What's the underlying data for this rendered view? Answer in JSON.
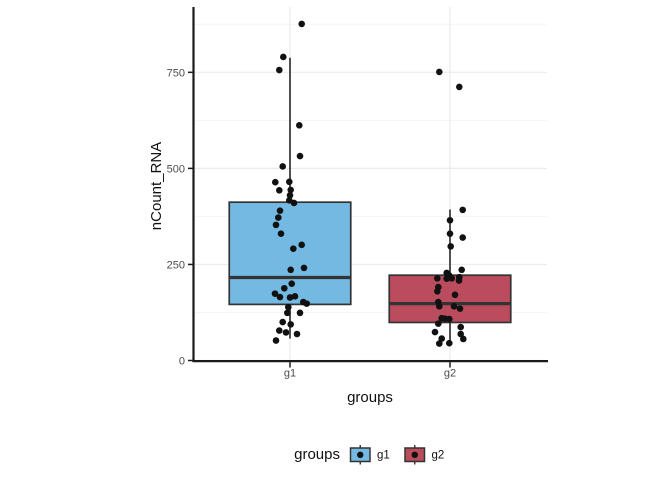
{
  "figure": {
    "background": "#ffffff"
  },
  "chart_data": {
    "type": "boxplot_with_jitter",
    "title": "",
    "xlabel": "groups",
    "ylabel": "nCount_RNA",
    "categories": [
      "g1",
      "g2"
    ],
    "yticks": [
      0,
      250,
      500,
      750
    ],
    "yminor_gridlines": [
      125,
      375,
      625,
      875
    ],
    "ylim": [
      0,
      920
    ],
    "grid": "horizontal major+minor, vertical major at categories",
    "legend": {
      "title": "groups",
      "entries": [
        "g1",
        "g2"
      ],
      "position": "bottom"
    },
    "colors": {
      "point": "#111111",
      "box_outline": "#333333",
      "axis": "#1a1a1a",
      "tick_label": "#4d4d4d",
      "major_grid": "#ebebeb",
      "minor_grid": "#f5f5f5",
      "g1_fill": "#74b9e2",
      "g2_fill": "#ba4c5d"
    },
    "series": [
      {
        "name": "g1",
        "fill": "#74b9e2",
        "box": {
          "q1": 146,
          "median": 216,
          "q3": 412,
          "whisker_low": 57,
          "whisker_high": 788
        },
        "points": [
          [
            876,
            11.7
          ],
          [
            790,
            -6.7
          ],
          [
            756,
            -10.7
          ],
          [
            612,
            9.3
          ],
          [
            532,
            10
          ],
          [
            505,
            -7.3
          ],
          [
            464,
            -14.7
          ],
          [
            465,
            -0.7
          ],
          [
            443,
            -10.7
          ],
          [
            444,
            0.7
          ],
          [
            430,
            0
          ],
          [
            417,
            -0.7
          ],
          [
            410,
            4
          ],
          [
            390,
            -10
          ],
          [
            372,
            -11.7
          ],
          [
            353,
            -14
          ],
          [
            330,
            -9
          ],
          [
            301,
            11.7
          ],
          [
            291,
            3.3
          ],
          [
            241,
            14
          ],
          [
            236,
            0.7
          ],
          [
            200,
            1.7
          ],
          [
            188,
            -5.7
          ],
          [
            174,
            -15
          ],
          [
            165,
            -10
          ],
          [
            164,
            0
          ],
          [
            167,
            5
          ],
          [
            152,
            13.3
          ],
          [
            148,
            16.7
          ],
          [
            139,
            -1.7
          ],
          [
            124,
            -2.7
          ],
          [
            124,
            10
          ],
          [
            100,
            -7.3
          ],
          [
            94,
            0.7
          ],
          [
            78,
            -10.7
          ],
          [
            73,
            -4
          ],
          [
            69,
            7
          ],
          [
            52,
            -14
          ]
        ]
      },
      {
        "name": "g2",
        "fill": "#ba4c5d",
        "box": {
          "q1": 99,
          "median": 148,
          "q3": 222,
          "whisker_low": 44,
          "whisker_high": 393
        },
        "points": [
          [
            751,
            -10.7
          ],
          [
            712,
            9.3
          ],
          [
            392,
            12.7
          ],
          [
            365,
            0
          ],
          [
            330,
            0
          ],
          [
            320,
            12.7
          ],
          [
            297,
            0.7
          ],
          [
            236,
            11.7
          ],
          [
            228,
            -3.3
          ],
          [
            221,
            -0.7
          ],
          [
            214,
            -12.7
          ],
          [
            213,
            -3.3
          ],
          [
            214,
            1.7
          ],
          [
            217,
            9.3
          ],
          [
            208,
            9
          ],
          [
            191,
            -11.7
          ],
          [
            180,
            -12.7
          ],
          [
            171,
            5
          ],
          [
            152,
            -11.7
          ],
          [
            141,
            -10.7
          ],
          [
            141,
            4
          ],
          [
            135,
            10
          ],
          [
            110,
            -8.3
          ],
          [
            109,
            -5
          ],
          [
            108,
            -0.7
          ],
          [
            96,
            -11.7
          ],
          [
            87,
            10.7
          ],
          [
            74,
            -15
          ],
          [
            69,
            10.7
          ],
          [
            57,
            -8.3
          ],
          [
            56,
            13.3
          ],
          [
            45,
            -0.7
          ],
          [
            44,
            -10.7
          ]
        ]
      }
    ]
  }
}
